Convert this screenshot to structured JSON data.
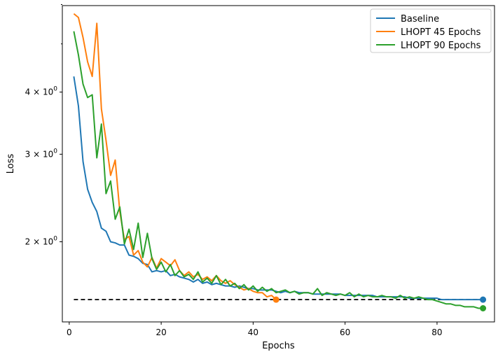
{
  "chart_data": {
    "type": "line",
    "title": "",
    "xlabel": "Epochs",
    "ylabel": "Loss",
    "yscale": "log",
    "xlim": [
      -1.5,
      92.5
    ],
    "ylim": [
      1.38,
      5.97
    ],
    "xticks": [
      0,
      20,
      40,
      60,
      80
    ],
    "xtick_labels": [
      "0",
      "20",
      "40",
      "60",
      "80"
    ],
    "yticks": [
      {
        "value": 2,
        "base": "2 × 10",
        "exp": "0"
      },
      {
        "value": 3,
        "base": "3 × 10",
        "exp": "0"
      },
      {
        "value": 4,
        "base": "4 × 10",
        "exp": "0"
      }
    ],
    "minor_yticks": [
      5,
      6
    ],
    "legend_position": "upper right",
    "reference_line": {
      "value": 1.53,
      "x_range": [
        1,
        90
      ],
      "style": "dashed",
      "color": "#000000"
    },
    "series": [
      {
        "name": "Baseline",
        "color": "#1f77b4",
        "x": [
          1,
          2,
          3,
          4,
          5,
          6,
          7,
          8,
          9,
          10,
          11,
          12,
          13,
          14,
          15,
          16,
          17,
          18,
          19,
          20,
          21,
          22,
          23,
          24,
          25,
          26,
          27,
          28,
          29,
          30,
          31,
          32,
          33,
          34,
          35,
          36,
          37,
          38,
          39,
          40,
          41,
          42,
          43,
          44,
          45,
          46,
          47,
          48,
          49,
          50,
          51,
          52,
          53,
          54,
          55,
          56,
          57,
          58,
          59,
          60,
          61,
          62,
          63,
          64,
          65,
          66,
          67,
          68,
          69,
          70,
          71,
          72,
          73,
          74,
          75,
          76,
          77,
          78,
          79,
          80,
          81,
          82,
          83,
          84,
          85,
          86,
          87,
          88,
          89,
          90
        ],
        "values": [
          4.3,
          3.75,
          2.9,
          2.55,
          2.4,
          2.3,
          2.13,
          2.1,
          2.0,
          1.99,
          1.97,
          1.97,
          1.88,
          1.87,
          1.85,
          1.81,
          1.8,
          1.74,
          1.75,
          1.74,
          1.75,
          1.71,
          1.72,
          1.7,
          1.69,
          1.68,
          1.66,
          1.68,
          1.65,
          1.66,
          1.64,
          1.65,
          1.64,
          1.63,
          1.63,
          1.62,
          1.63,
          1.62,
          1.61,
          1.61,
          1.6,
          1.6,
          1.6,
          1.6,
          1.59,
          1.58,
          1.59,
          1.58,
          1.59,
          1.58,
          1.58,
          1.58,
          1.57,
          1.57,
          1.57,
          1.57,
          1.57,
          1.57,
          1.57,
          1.56,
          1.56,
          1.56,
          1.56,
          1.56,
          1.56,
          1.56,
          1.55,
          1.55,
          1.55,
          1.55,
          1.55,
          1.55,
          1.55,
          1.54,
          1.54,
          1.54,
          1.54,
          1.54,
          1.54,
          1.54,
          1.53,
          1.53,
          1.53,
          1.53,
          1.53,
          1.53,
          1.53,
          1.53,
          1.53,
          1.53
        ],
        "endpoint_marker": true
      },
      {
        "name": "LHOPT 45 Epochs",
        "color": "#ff7f0e",
        "x": [
          1,
          2,
          3,
          4,
          5,
          6,
          7,
          8,
          9,
          10,
          11,
          12,
          13,
          14,
          15,
          16,
          17,
          18,
          19,
          20,
          21,
          22,
          23,
          24,
          25,
          26,
          27,
          28,
          29,
          30,
          31,
          32,
          33,
          34,
          35,
          36,
          37,
          38,
          39,
          40,
          41,
          42,
          43,
          44,
          45
        ],
        "values": [
          5.75,
          5.65,
          5.15,
          4.6,
          4.3,
          5.5,
          3.7,
          3.2,
          2.72,
          2.92,
          2.3,
          2.02,
          2.05,
          1.88,
          1.92,
          1.82,
          1.78,
          1.86,
          1.77,
          1.85,
          1.82,
          1.79,
          1.84,
          1.75,
          1.71,
          1.74,
          1.7,
          1.72,
          1.68,
          1.7,
          1.67,
          1.71,
          1.67,
          1.65,
          1.67,
          1.64,
          1.62,
          1.6,
          1.61,
          1.59,
          1.58,
          1.58,
          1.55,
          1.56,
          1.53
        ],
        "endpoint_marker": true
      },
      {
        "name": "LHOPT 90 Epochs",
        "color": "#2ca02c",
        "x": [
          1,
          2,
          3,
          4,
          5,
          6,
          7,
          8,
          9,
          10,
          11,
          12,
          13,
          14,
          15,
          16,
          17,
          18,
          19,
          20,
          21,
          22,
          23,
          24,
          25,
          26,
          27,
          28,
          29,
          30,
          31,
          32,
          33,
          34,
          35,
          36,
          37,
          38,
          39,
          40,
          41,
          42,
          43,
          44,
          45,
          46,
          47,
          48,
          49,
          50,
          51,
          52,
          53,
          54,
          55,
          56,
          57,
          58,
          59,
          60,
          61,
          62,
          63,
          64,
          65,
          66,
          67,
          68,
          69,
          70,
          71,
          72,
          73,
          74,
          75,
          76,
          77,
          78,
          79,
          80,
          81,
          82,
          83,
          84,
          85,
          86,
          87,
          88,
          89,
          90
        ],
        "values": [
          5.3,
          4.75,
          4.15,
          3.9,
          3.95,
          2.95,
          3.45,
          2.5,
          2.65,
          2.22,
          2.35,
          1.98,
          2.12,
          1.93,
          2.18,
          1.86,
          2.08,
          1.85,
          1.76,
          1.82,
          1.74,
          1.8,
          1.71,
          1.75,
          1.7,
          1.72,
          1.68,
          1.74,
          1.66,
          1.69,
          1.65,
          1.71,
          1.64,
          1.68,
          1.63,
          1.65,
          1.61,
          1.64,
          1.6,
          1.63,
          1.59,
          1.62,
          1.59,
          1.61,
          1.58,
          1.59,
          1.6,
          1.58,
          1.59,
          1.57,
          1.58,
          1.58,
          1.57,
          1.61,
          1.56,
          1.58,
          1.57,
          1.56,
          1.57,
          1.56,
          1.58,
          1.55,
          1.57,
          1.55,
          1.56,
          1.55,
          1.55,
          1.56,
          1.55,
          1.55,
          1.54,
          1.56,
          1.54,
          1.55,
          1.54,
          1.55,
          1.54,
          1.53,
          1.53,
          1.52,
          1.51,
          1.5,
          1.5,
          1.49,
          1.49,
          1.48,
          1.48,
          1.48,
          1.47,
          1.47
        ],
        "endpoint_marker": true
      }
    ]
  }
}
